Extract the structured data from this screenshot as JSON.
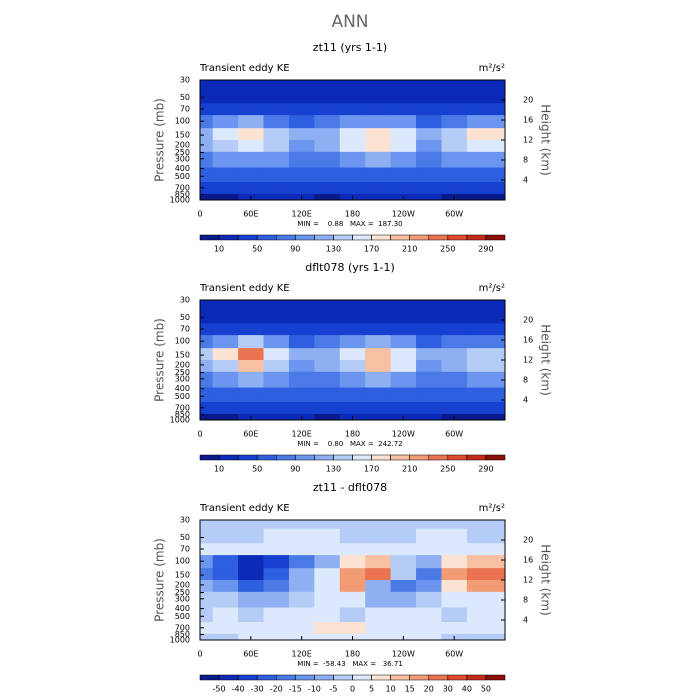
{
  "title": "ANN",
  "chart_data": [
    {
      "type": "contour",
      "title": "zt11 (yrs 1-1)",
      "left_label": "Transient eddy KE",
      "units": "m²/s²",
      "ylabel": "Pressure (mb)",
      "y2label": "Height (km)",
      "stats": "MIN =    0.88   MAX =  187.30",
      "x": [
        0,
        30,
        60,
        90,
        120,
        150,
        180,
        210,
        240,
        270,
        300,
        330
      ],
      "y": [
        30,
        50,
        70,
        100,
        150,
        200,
        300,
        500,
        700,
        1000
      ],
      "z": [
        [
          15,
          15,
          15,
          15,
          15,
          15,
          15,
          15,
          15,
          15,
          15,
          15
        ],
        [
          20,
          20,
          20,
          20,
          20,
          20,
          20,
          20,
          20,
          20,
          20,
          20
        ],
        [
          30,
          30,
          35,
          30,
          30,
          30,
          30,
          30,
          30,
          30,
          30,
          30
        ],
        [
          70,
          90,
          110,
          80,
          60,
          70,
          90,
          100,
          90,
          60,
          80,
          100
        ],
        [
          120,
          150,
          185,
          140,
          110,
          120,
          160,
          175,
          160,
          110,
          140,
          170
        ],
        [
          110,
          130,
          160,
          130,
          100,
          110,
          150,
          170,
          150,
          100,
          130,
          160
        ],
        [
          80,
          90,
          100,
          90,
          80,
          80,
          100,
          110,
          100,
          80,
          90,
          100
        ],
        [
          50,
          55,
          60,
          55,
          50,
          50,
          60,
          60,
          55,
          50,
          55,
          60
        ],
        [
          30,
          30,
          35,
          30,
          30,
          30,
          35,
          35,
          30,
          30,
          30,
          35
        ],
        [
          8,
          8,
          10,
          10,
          10,
          8,
          10,
          10,
          10,
          10,
          8,
          8
        ]
      ],
      "xlim": [
        0,
        360
      ],
      "xticks": [
        0,
        {
          "value": 60,
          "label": "60E"
        },
        {
          "value": 120,
          "label": "120E"
        },
        180,
        {
          "value": 240,
          "label": "120W"
        },
        {
          "value": 300,
          "label": "60W"
        }
      ],
      "ylim": [
        1000,
        30
      ],
      "log_y": true,
      "yticks": [
        30,
        50,
        70,
        100,
        150,
        200,
        250,
        300,
        400,
        500,
        700,
        850,
        1000
      ],
      "y2lim": [
        0,
        24
      ],
      "y2ticks": [
        4,
        8,
        12,
        16,
        20
      ],
      "levels": [
        10,
        30,
        50,
        70,
        90,
        110,
        130,
        150,
        170,
        190,
        210,
        230,
        250,
        270,
        290
      ],
      "label_every": 2,
      "colors": [
        "#0a1a8c",
        "#0c2ab8",
        "#1540d0",
        "#2e5fe0",
        "#4a7ae6",
        "#6b95ee",
        "#8eb0f2",
        "#b4ccf6",
        "#dce8fb",
        "#fbe2d2",
        "#f7c0a3",
        "#f29c76",
        "#eb7350",
        "#e04a2e",
        "#c42a17",
        "#8c0f0a"
      ]
    },
    {
      "type": "contour",
      "title": "dflt078 (yrs 1-1)",
      "left_label": "Transient eddy KE",
      "units": "m²/s²",
      "ylabel": "Pressure (mb)",
      "y2label": "Height (km)",
      "stats": "MIN =    0.80   MAX =  242.72",
      "x": [
        0,
        30,
        60,
        90,
        120,
        150,
        180,
        210,
        240,
        270,
        300,
        330
      ],
      "y": [
        30,
        50,
        70,
        100,
        150,
        200,
        300,
        500,
        700,
        1000
      ],
      "z": [
        [
          15,
          15,
          15,
          15,
          15,
          15,
          15,
          15,
          15,
          15,
          15,
          15
        ],
        [
          20,
          20,
          20,
          20,
          20,
          20,
          20,
          20,
          20,
          20,
          20,
          20
        ],
        [
          30,
          30,
          35,
          30,
          30,
          30,
          30,
          30,
          30,
          30,
          30,
          30
        ],
        [
          70,
          100,
          130,
          90,
          60,
          70,
          90,
          110,
          90,
          60,
          70,
          80
        ],
        [
          130,
          170,
          240,
          160,
          120,
          120,
          150,
          190,
          150,
          110,
          120,
          140
        ],
        [
          110,
          140,
          200,
          140,
          100,
          110,
          140,
          200,
          150,
          100,
          110,
          130
        ],
        [
          80,
          90,
          110,
          90,
          80,
          80,
          100,
          120,
          100,
          80,
          80,
          90
        ],
        [
          50,
          55,
          60,
          55,
          50,
          50,
          60,
          60,
          55,
          50,
          50,
          55
        ],
        [
          30,
          30,
          35,
          30,
          30,
          30,
          35,
          35,
          30,
          30,
          30,
          30
        ],
        [
          8,
          8,
          10,
          10,
          10,
          8,
          10,
          10,
          10,
          10,
          8,
          8
        ]
      ],
      "xlim": [
        0,
        360
      ],
      "xticks": [
        0,
        {
          "value": 60,
          "label": "60E"
        },
        {
          "value": 120,
          "label": "120E"
        },
        180,
        {
          "value": 240,
          "label": "120W"
        },
        {
          "value": 300,
          "label": "60W"
        }
      ],
      "ylim": [
        1000,
        30
      ],
      "log_y": true,
      "yticks": [
        30,
        50,
        70,
        100,
        150,
        200,
        250,
        300,
        400,
        500,
        700,
        850,
        1000
      ],
      "y2lim": [
        0,
        24
      ],
      "y2ticks": [
        4,
        8,
        12,
        16,
        20
      ],
      "levels": [
        10,
        30,
        50,
        70,
        90,
        110,
        130,
        150,
        170,
        190,
        210,
        230,
        250,
        270,
        290
      ],
      "label_every": 2,
      "colors": [
        "#0a1a8c",
        "#0c2ab8",
        "#1540d0",
        "#2e5fe0",
        "#4a7ae6",
        "#6b95ee",
        "#8eb0f2",
        "#b4ccf6",
        "#dce8fb",
        "#fbe2d2",
        "#f7c0a3",
        "#f29c76",
        "#eb7350",
        "#e04a2e",
        "#c42a17",
        "#8c0f0a"
      ]
    },
    {
      "type": "contour",
      "title": "zt11 - dflt078",
      "left_label": "Transient eddy KE",
      "units": "m²/s²",
      "ylabel": "Pressure (mb)",
      "y2label": "Height (km)",
      "stats": "MIN =  -58.43   MAX =   36.71",
      "x": [
        0,
        30,
        60,
        90,
        120,
        150,
        180,
        210,
        240,
        270,
        300,
        330
      ],
      "y": [
        30,
        50,
        70,
        100,
        150,
        200,
        300,
        500,
        700,
        1000
      ],
      "z": [
        [
          -3,
          -3,
          -3,
          -3,
          -3,
          -3,
          -3,
          -3,
          -3,
          -3,
          -3,
          -3
        ],
        [
          -3,
          -3,
          -3,
          2,
          2,
          2,
          -3,
          -3,
          -3,
          2,
          2,
          -3
        ],
        [
          2,
          2,
          3,
          3,
          2,
          2,
          2,
          2,
          2,
          2,
          3,
          2
        ],
        [
          -15,
          -30,
          -45,
          -40,
          -20,
          -8,
          8,
          10,
          -4,
          -8,
          6,
          12
        ],
        [
          -20,
          -25,
          -50,
          -30,
          -10,
          2,
          18,
          25,
          -5,
          -20,
          15,
          25
        ],
        [
          -8,
          -15,
          -30,
          -20,
          -8,
          3,
          15,
          -10,
          -20,
          -12,
          8,
          15
        ],
        [
          -3,
          -5,
          -8,
          -6,
          -3,
          3,
          4,
          -6,
          -8,
          -4,
          3,
          4
        ],
        [
          -3,
          3,
          -2,
          3,
          4,
          3,
          -2,
          3,
          3,
          3,
          -3,
          3
        ],
        [
          2,
          3,
          3,
          3,
          2,
          6,
          6,
          3,
          2,
          2,
          3,
          2
        ],
        [
          -5,
          -3,
          2,
          3,
          3,
          3,
          3,
          2,
          3,
          2,
          -3,
          -3
        ]
      ],
      "xlim": [
        0,
        360
      ],
      "xticks": [
        0,
        {
          "value": 60,
          "label": "60E"
        },
        {
          "value": 120,
          "label": "120E"
        },
        180,
        {
          "value": 240,
          "label": "120W"
        },
        {
          "value": 300,
          "label": "60W"
        }
      ],
      "ylim": [
        1000,
        30
      ],
      "log_y": true,
      "yticks": [
        30,
        50,
        70,
        100,
        150,
        200,
        250,
        300,
        400,
        500,
        700,
        850,
        1000
      ],
      "y2lim": [
        0,
        24
      ],
      "y2ticks": [
        4,
        8,
        12,
        16,
        20
      ],
      "levels": [
        -50,
        -40,
        -30,
        -20,
        -15,
        -10,
        -5,
        0,
        5,
        10,
        15,
        20,
        30,
        40,
        50
      ],
      "label_every": 1,
      "colors": [
        "#0a1a8c",
        "#0c2ab8",
        "#1540d0",
        "#2e5fe0",
        "#4a7ae6",
        "#6b95ee",
        "#8eb0f2",
        "#b4ccf6",
        "#dce8fb",
        "#fbe2d2",
        "#f7c0a3",
        "#f29c76",
        "#eb7350",
        "#e04a2e",
        "#c42a17",
        "#8c0f0a"
      ]
    }
  ]
}
